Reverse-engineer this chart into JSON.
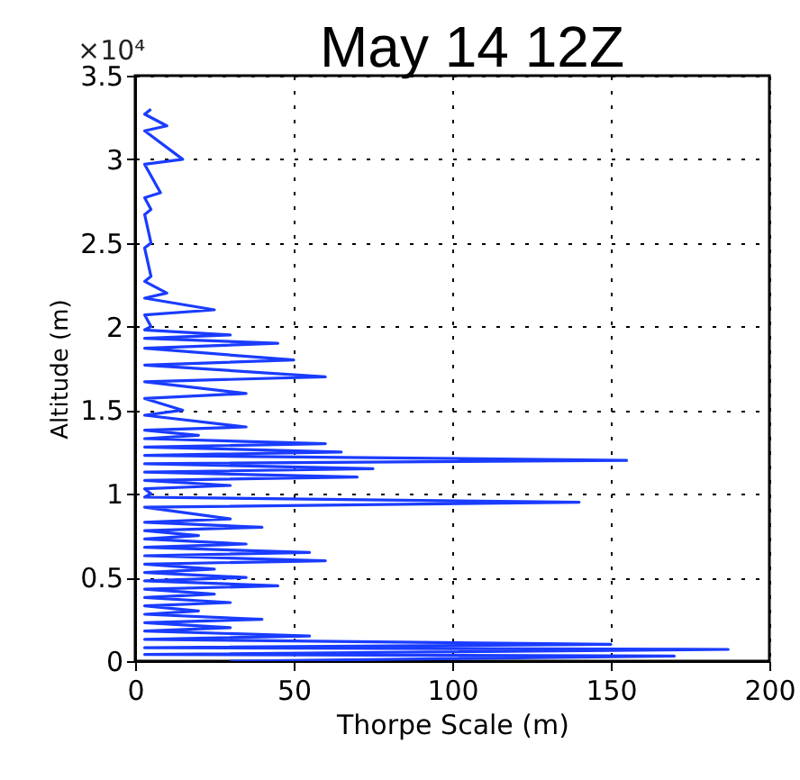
{
  "chart_data": {
    "type": "line",
    "title": "May 14 12Z",
    "xlabel": "Thorpe Scale (m)",
    "ylabel": "Altitude (m)",
    "annotations": [
      "×10⁴"
    ],
    "x": [
      30,
      170,
      3,
      187,
      3,
      150,
      3,
      55,
      3,
      30,
      3,
      40,
      3,
      20,
      3,
      30,
      3,
      25,
      3,
      45,
      3,
      35,
      3,
      25,
      3,
      60,
      3,
      55,
      3,
      35,
      3,
      20,
      3,
      40,
      3,
      30,
      3,
      140,
      3,
      5,
      3,
      30,
      3,
      70,
      3,
      75,
      3,
      155,
      3,
      65,
      3,
      60,
      3,
      20,
      3,
      35,
      3,
      15,
      3,
      35,
      3,
      60,
      3,
      50,
      3,
      45,
      3,
      30,
      3,
      5,
      3,
      25,
      3,
      10,
      3,
      5,
      3,
      5,
      3,
      5,
      3,
      8,
      3,
      15,
      3,
      10,
      3,
      5
    ],
    "series": [
      {
        "color": "#1a3cff",
        "values": [
          0,
          0.03,
          0.04,
          0.07,
          0.08,
          0.1,
          0.13,
          0.15,
          0.18,
          0.2,
          0.23,
          0.25,
          0.28,
          0.3,
          0.33,
          0.35,
          0.38,
          0.4,
          0.43,
          0.45,
          0.48,
          0.5,
          0.53,
          0.55,
          0.58,
          0.6,
          0.63,
          0.65,
          0.68,
          0.7,
          0.73,
          0.75,
          0.78,
          0.8,
          0.83,
          0.85,
          0.92,
          0.95,
          0.98,
          1.0,
          1.03,
          1.05,
          1.08,
          1.1,
          1.13,
          1.15,
          1.18,
          1.2,
          1.23,
          1.25,
          1.28,
          1.3,
          1.33,
          1.35,
          1.38,
          1.4,
          1.47,
          1.5,
          1.57,
          1.6,
          1.67,
          1.7,
          1.77,
          1.8,
          1.87,
          1.9,
          1.93,
          1.95,
          1.98,
          2.0,
          2.07,
          2.1,
          2.17,
          2.2,
          2.27,
          2.3,
          2.47,
          2.5,
          2.67,
          2.7,
          2.77,
          2.8,
          2.97,
          3.0,
          3.17,
          3.2,
          3.27,
          3.3
        ]
      }
    ],
    "xlim": [
      0,
      200
    ],
    "xticks": [
      0,
      50,
      100,
      150,
      200
    ],
    "ylim": [
      0,
      3.5
    ],
    "yticks": [
      0,
      0.5,
      1,
      1.5,
      2,
      2.5,
      3,
      3.5
    ],
    "grid": true,
    "marker": "none",
    "line_style": "solid"
  }
}
